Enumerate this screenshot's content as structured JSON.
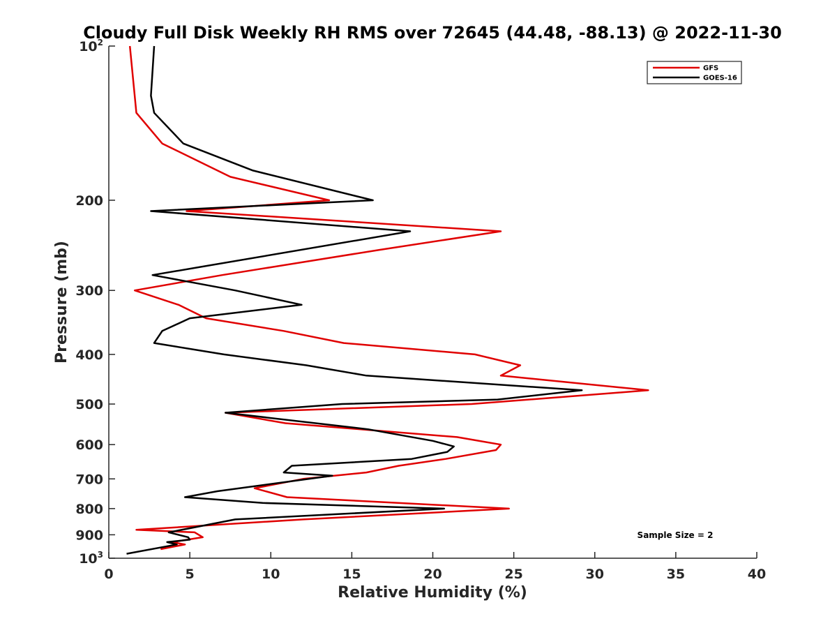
{
  "chart_data": {
    "type": "line",
    "title": "Cloudy Full Disk Weekly RH RMS over 72645 (44.48, -88.13) @ 2022-11-30",
    "xlabel": "Relative Humidity (%)",
    "ylabel": "Pressure (mb)",
    "xlim": [
      0,
      40
    ],
    "ylim": [
      100,
      1000
    ],
    "y_scale": "log",
    "y_reversed": true,
    "x_ticks": [
      "0",
      "5",
      "10",
      "15",
      "20",
      "25",
      "30",
      "35",
      "40"
    ],
    "y_ticks": [
      {
        "value": 100,
        "base": "10",
        "exp": "2"
      },
      {
        "value": 200,
        "label": "200"
      },
      {
        "value": 300,
        "label": "300"
      },
      {
        "value": 400,
        "label": "400"
      },
      {
        "value": 500,
        "label": "500"
      },
      {
        "value": 600,
        "label": "600"
      },
      {
        "value": 700,
        "label": "700"
      },
      {
        "value": 800,
        "label": "800"
      },
      {
        "value": 900,
        "label": "900"
      },
      {
        "value": 1000,
        "base": "10",
        "exp": "3"
      }
    ],
    "legend_position": "top-right",
    "annotation": "Sample Size = 2",
    "series": [
      {
        "name": "GFS",
        "color": "#e00000",
        "points": [
          [
            1.3,
            100
          ],
          [
            1.7,
            135
          ],
          [
            3.3,
            155
          ],
          [
            7.5,
            180
          ],
          [
            13.6,
            200
          ],
          [
            4.8,
            210
          ],
          [
            24.2,
            230
          ],
          [
            16.7,
            250
          ],
          [
            7.0,
            280
          ],
          [
            1.6,
            300
          ],
          [
            4.3,
            320
          ],
          [
            6.0,
            340
          ],
          [
            10.8,
            360
          ],
          [
            14.5,
            380
          ],
          [
            22.6,
            400
          ],
          [
            25.4,
            420
          ],
          [
            24.2,
            440
          ],
          [
            33.3,
            470
          ],
          [
            22.4,
            500
          ],
          [
            7.2,
            520
          ],
          [
            10.9,
            545
          ],
          [
            21.5,
            580
          ],
          [
            24.2,
            600
          ],
          [
            23.9,
            615
          ],
          [
            20.8,
            640
          ],
          [
            17.9,
            660
          ],
          [
            15.9,
            680
          ],
          [
            12.0,
            700
          ],
          [
            9.0,
            730
          ],
          [
            11.0,
            760
          ],
          [
            24.7,
            800
          ],
          [
            12.0,
            840
          ],
          [
            1.7,
            880
          ],
          [
            5.3,
            890
          ],
          [
            5.8,
            910
          ],
          [
            3.9,
            930
          ],
          [
            4.7,
            940
          ],
          [
            3.2,
            960
          ]
        ]
      },
      {
        "name": "GOES-16",
        "color": "#000000",
        "points": [
          [
            2.8,
            100
          ],
          [
            2.6,
            125
          ],
          [
            2.8,
            135
          ],
          [
            4.6,
            155
          ],
          [
            8.9,
            175
          ],
          [
            16.3,
            200
          ],
          [
            2.6,
            210
          ],
          [
            18.6,
            230
          ],
          [
            2.7,
            280
          ],
          [
            7.8,
            300
          ],
          [
            11.9,
            320
          ],
          [
            5.0,
            340
          ],
          [
            3.3,
            360
          ],
          [
            2.8,
            380
          ],
          [
            7.1,
            400
          ],
          [
            12.2,
            420
          ],
          [
            15.9,
            440
          ],
          [
            29.2,
            470
          ],
          [
            24.0,
            490
          ],
          [
            14.4,
            500
          ],
          [
            7.2,
            520
          ],
          [
            16.0,
            560
          ],
          [
            20.0,
            590
          ],
          [
            21.3,
            605
          ],
          [
            20.9,
            620
          ],
          [
            18.7,
            640
          ],
          [
            11.3,
            660
          ],
          [
            10.8,
            680
          ],
          [
            13.8,
            690
          ],
          [
            6.7,
            740
          ],
          [
            4.7,
            760
          ],
          [
            9.5,
            780
          ],
          [
            20.7,
            800
          ],
          [
            7.8,
            840
          ],
          [
            3.7,
            890
          ],
          [
            4.9,
            910
          ],
          [
            5.0,
            920
          ],
          [
            3.6,
            930
          ],
          [
            4.2,
            940
          ],
          [
            1.1,
            980
          ]
        ]
      }
    ]
  }
}
